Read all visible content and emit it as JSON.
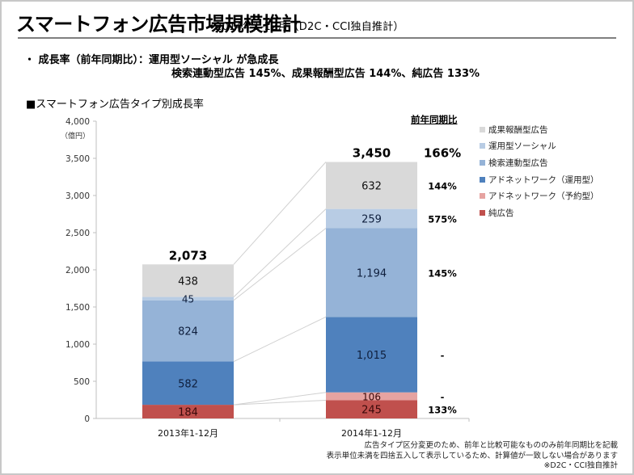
{
  "header": {
    "title": "スマートフォン広告市場規模推計",
    "subtitle": "2014年1-12月（D2C・CCI独自推計）"
  },
  "summary": {
    "bullet_marker": "・",
    "line1": "成長率（前年同期比）：運用型ソーシャル が急成長",
    "line2": "検索連動型広告 145%、成果報酬型広告 144%、純広告 133%"
  },
  "chart_section_title": "■スマートフォン広告タイプ別成長率",
  "yoy_header": "前年同期比",
  "notes": [
    "広告タイプ区分変更のため、前年と比較可能なもののみ前年同期比を記載",
    "表示単位未満を四捨五入して表示しているため、計算値が一致しない場合があります",
    "※D2C・CCI独自推計"
  ],
  "chart_data": {
    "type": "bar",
    "stacked": true,
    "title": "スマートフォン広告タイプ別成長率",
    "xlabel": "",
    "ylabel": "（億円）",
    "ylim": [
      0,
      4000
    ],
    "yticks": [
      0,
      500,
      1000,
      1500,
      2000,
      2500,
      3000,
      3500,
      4000
    ],
    "ytick_labels": [
      "0",
      "500",
      "1,000",
      "1,500",
      "2,000",
      "2,500",
      "3,000",
      "3,500",
      "4,000"
    ],
    "grid": false,
    "legend_position": "right",
    "categories": [
      "2013年1-12月",
      "2014年1-12月"
    ],
    "totals": [
      2073,
      3450
    ],
    "total_labels": [
      "2,073",
      "3,450"
    ],
    "series": [
      {
        "name": "純広告",
        "color": "#c0504d",
        "label_color": "#3a0a0a",
        "values": [
          184,
          245
        ],
        "labels": [
          "184",
          "245"
        ]
      },
      {
        "name": "アドネットワーク（予約型）",
        "color": "#e6a3a1",
        "label_color": "#3a0a0a",
        "values": [
          0,
          106
        ],
        "labels": [
          "",
          "106"
        ]
      },
      {
        "name": "アドネットワーク（運用型）",
        "color": "#4f81bd",
        "label_color": "#0f1f3d",
        "values": [
          582,
          1015
        ],
        "labels": [
          "582",
          "1,015"
        ]
      },
      {
        "name": "検索連動型広告",
        "color": "#95b3d7",
        "label_color": "#0f1f3d",
        "values": [
          824,
          1194
        ],
        "labels": [
          "824",
          "1,194"
        ]
      },
      {
        "name": "運用型ソーシャル",
        "color": "#b8cce4",
        "label_color": "#0f1f3d",
        "values": [
          45,
          259
        ],
        "labels": [
          "45",
          "259"
        ]
      },
      {
        "name": "成果報酬型広告",
        "color": "#d9d9d9",
        "label_color": "#111111",
        "values": [
          438,
          632
        ],
        "labels": [
          "438",
          "632"
        ]
      }
    ],
    "legend_order": [
      "成果報酬型広告",
      "運用型ソーシャル",
      "検索連動型広告",
      "アドネットワーク（運用型）",
      "アドネットワーク（予約型）",
      "純広告"
    ],
    "yoy_growth": {
      "header": "前年同期比",
      "total": "166%",
      "by_series": {
        "成果報酬型広告": "144%",
        "運用型ソーシャル": "575%",
        "検索連動型広告": "145%",
        "アドネットワーク（運用型）": "-",
        "アドネットワーク（予約型）": "-",
        "純広告": "133%"
      }
    }
  }
}
